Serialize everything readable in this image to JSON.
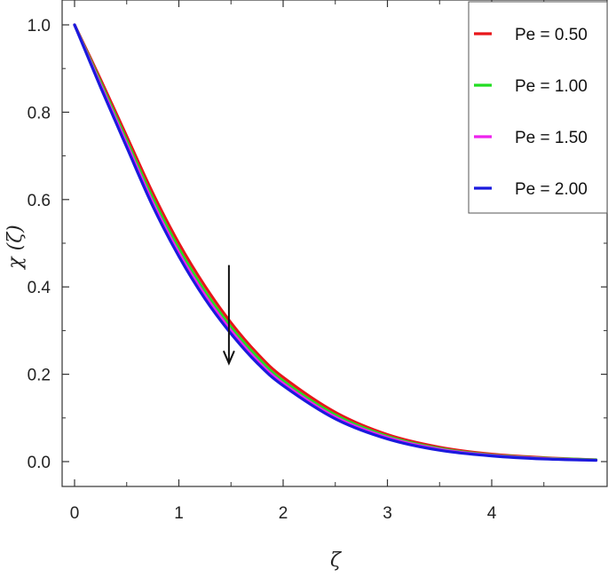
{
  "chart_data": {
    "type": "line",
    "title": "",
    "xlabel": "ζ",
    "ylabel": "χ (ζ)",
    "xlim": [
      -0.1,
      5.1
    ],
    "ylim": [
      -0.05,
      1.05
    ],
    "x_ticks": [
      0,
      1,
      2,
      3,
      4
    ],
    "x_tick_labels": [
      "0",
      "1",
      "2",
      "3",
      "4"
    ],
    "y_ticks": [
      0.0,
      0.2,
      0.4,
      0.6,
      0.8,
      1.0
    ],
    "y_tick_labels": [
      "0.0",
      "0.2",
      "0.4",
      "0.6",
      "0.8",
      "1.0"
    ],
    "grid": false,
    "legend_position": "top-right",
    "x": [
      0,
      0.25,
      0.5,
      0.75,
      1.0,
      1.25,
      1.5,
      1.75,
      2.0,
      2.5,
      3.0,
      3.5,
      4.0,
      4.5,
      5.0
    ],
    "series": [
      {
        "name": "Pe = 0.50",
        "color": "#e8161a",
        "values": [
          1.0,
          0.875,
          0.745,
          0.615,
          0.5,
          0.402,
          0.318,
          0.248,
          0.193,
          0.113,
          0.062,
          0.033,
          0.017,
          0.009,
          0.004
        ]
      },
      {
        "name": "Pe = 1.00",
        "color": "#22dd22",
        "values": [
          1.0,
          0.868,
          0.735,
          0.603,
          0.488,
          0.39,
          0.308,
          0.24,
          0.185,
          0.107,
          0.058,
          0.03,
          0.015,
          0.008,
          0.004
        ]
      },
      {
        "name": "Pe = 1.50",
        "color": "#ee22ee",
        "values": [
          1.0,
          0.862,
          0.727,
          0.593,
          0.478,
          0.381,
          0.3,
          0.232,
          0.179,
          0.102,
          0.055,
          0.028,
          0.014,
          0.007,
          0.003
        ]
      },
      {
        "name": "Pe = 2.00",
        "color": "#1a1add",
        "values": [
          1.0,
          0.857,
          0.72,
          0.585,
          0.47,
          0.373,
          0.293,
          0.226,
          0.174,
          0.098,
          0.052,
          0.026,
          0.013,
          0.006,
          0.003
        ]
      }
    ],
    "annotations": [
      {
        "type": "arrow",
        "x": 1.48,
        "y_start": 0.45,
        "y_end": 0.225
      }
    ]
  }
}
